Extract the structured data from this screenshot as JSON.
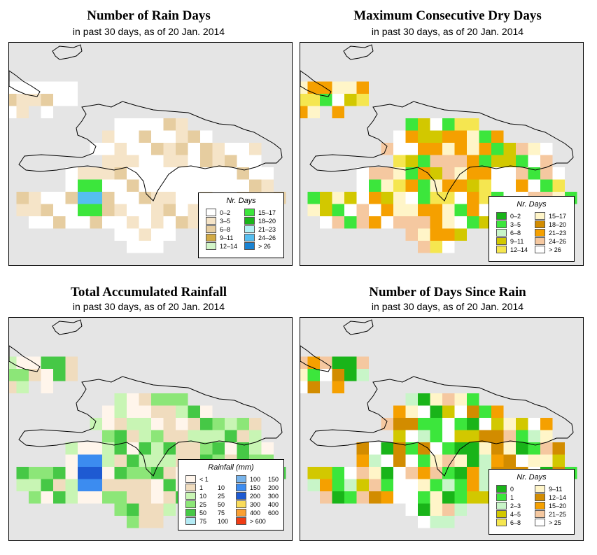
{
  "colors": {
    "map_background": "#e5e5e5",
    "land_base": "#ffffff",
    "coast_line": "#000000"
  },
  "panels": [
    {
      "title": "Number of Rain Days",
      "subtitle": "in past 30 days, as of  20 Jan. 2014",
      "legend": {
        "title": "Nr. Days",
        "items": [
          {
            "label": "0–2",
            "color": "#ffffff"
          },
          {
            "label": "3–5",
            "color": "#f5e4c8"
          },
          {
            "label": "6–8",
            "color": "#e6cda0"
          },
          {
            "label": "9–11",
            "color": "#d2aa45"
          },
          {
            "label": "12–14",
            "color": "#d2f5c8"
          },
          {
            "label": "15–17",
            "color": "#3ce63c"
          },
          {
            "label": "18–20",
            "color": "#19b419"
          },
          {
            "label": "21–23",
            "color": "#b4f0f5"
          },
          {
            "label": "24–26",
            "color": "#55bef0"
          },
          {
            "label": "> 26",
            "color": "#1982d2"
          }
        ]
      }
    },
    {
      "title": "Maximum Consecutive Dry Days",
      "subtitle": "in past 30 days, as of  20 Jan. 2014",
      "legend": {
        "title": "Nr. Days",
        "items": [
          {
            "label": "0–2",
            "color": "#19b419"
          },
          {
            "label": "3–5",
            "color": "#3ce63c"
          },
          {
            "label": "6–8",
            "color": "#c8f5c8"
          },
          {
            "label": "9–11",
            "color": "#d2c800"
          },
          {
            "label": "12–14",
            "color": "#f5e650"
          },
          {
            "label": "15–17",
            "color": "#fff5c8"
          },
          {
            "label": "18–20",
            "color": "#d28c00"
          },
          {
            "label": "21–23",
            "color": "#f5a000"
          },
          {
            "label": "24–26",
            "color": "#f5c8a0"
          },
          {
            "label": "> 26",
            "color": "#ffffff"
          }
        ]
      }
    },
    {
      "title": "Total Accumulated Rainfall",
      "subtitle": "in past 30 days, as of  20 Jan. 2014",
      "legend": {
        "title": "Rainfall (mm)",
        "items": [
          {
            "label": "< 1",
            "label2": "",
            "color": "#fff5eb"
          },
          {
            "label": "1",
            "label2": "10",
            "color": "#f0dcbe"
          },
          {
            "label": "10",
            "label2": "25",
            "color": "#c8f5b4"
          },
          {
            "label": "25",
            "label2": "50",
            "color": "#8ce678"
          },
          {
            "label": "50",
            "label2": "75",
            "color": "#46c846"
          },
          {
            "label": "75",
            "label2": "100",
            "color": "#b4ebf5"
          },
          {
            "label": "100",
            "label2": "150",
            "color": "#78b4eb"
          },
          {
            "label": "150",
            "label2": "200",
            "color": "#3c8cf0"
          },
          {
            "label": "200",
            "label2": "300",
            "color": "#1e5ad2"
          },
          {
            "label": "300",
            "label2": "400",
            "color": "#fadc5a"
          },
          {
            "label": "400",
            "label2": "600",
            "color": "#faa032"
          },
          {
            "label": "> 600",
            "label2": "",
            "color": "#f03c14"
          }
        ]
      }
    },
    {
      "title": "Number of Days Since Rain",
      "subtitle": "in past 30 days, as of  20 Jan. 2014",
      "legend": {
        "title": "Nr. Days",
        "items": [
          {
            "label": "0",
            "color": "#19b419"
          },
          {
            "label": "1",
            "color": "#3ce63c"
          },
          {
            "label": "2–3",
            "color": "#c8f5c8"
          },
          {
            "label": "4–5",
            "color": "#d2c800"
          },
          {
            "label": "6–8",
            "color": "#f5e650"
          },
          {
            "label": "9–11",
            "color": "#fff5c8"
          },
          {
            "label": "12–14",
            "color": "#d28c00"
          },
          {
            "label": "15–20",
            "color": "#f5a000"
          },
          {
            "label": "21–25",
            "color": "#f5c8a0"
          },
          {
            "label": "> 25",
            "color": "#ffffff"
          }
        ]
      }
    }
  ]
}
